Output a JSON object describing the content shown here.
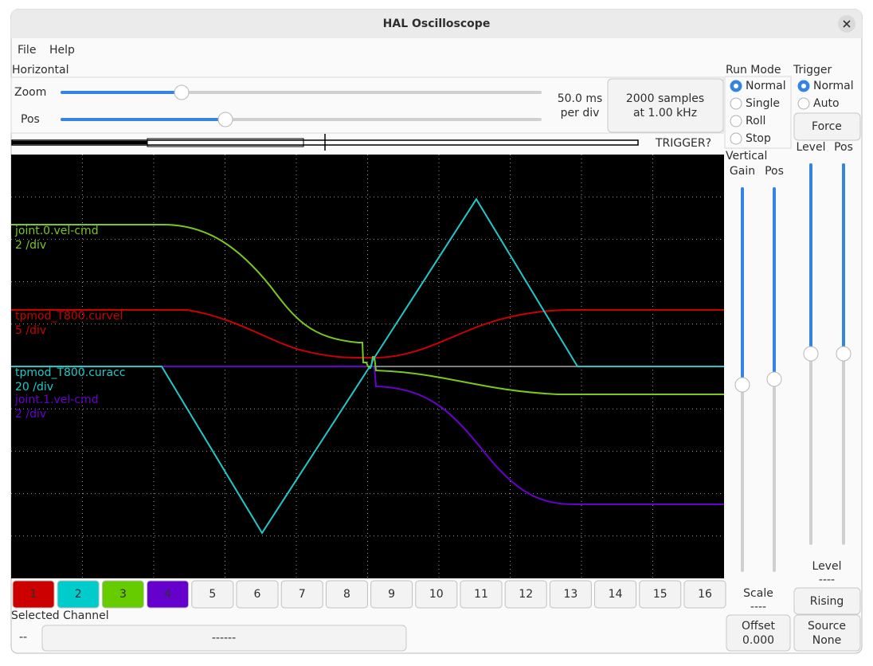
{
  "window": {
    "title": "HAL Oscilloscope"
  },
  "menu": [
    "File",
    "Help"
  ],
  "horizontal": {
    "title": "Horizontal",
    "zoom": "Zoom",
    "pos": "Pos",
    "rate": [
      "50.0 ms",
      "per div"
    ],
    "samples": [
      "2000 samples",
      "at 1.00 kHz"
    ],
    "trigger_status": "TRIGGER?"
  },
  "scope": {
    "traces": [
      {
        "name": "joint.0.vel-cmd",
        "scale": "2 /div",
        "color": "#78c81e"
      },
      {
        "name": "tpmod_T800.curvel",
        "scale": "5 /div",
        "color": "#cc0000"
      },
      {
        "name": "tpmod_T800.curacc",
        "scale": "20 /div",
        "color": "#22c8c8"
      },
      {
        "name": "joint.1.vel-cmd",
        "scale": "2 /div",
        "color": "#6a00cc"
      }
    ]
  },
  "channels": [
    {
      "label": "1",
      "color": "#cc0000"
    },
    {
      "label": "2",
      "color": "#00cccc"
    },
    {
      "label": "3",
      "color": "#66cc00"
    },
    {
      "label": "4",
      "color": "#6600cc"
    },
    {
      "label": "5"
    },
    {
      "label": "6"
    },
    {
      "label": "7"
    },
    {
      "label": "8"
    },
    {
      "label": "9"
    },
    {
      "label": "10"
    },
    {
      "label": "11"
    },
    {
      "label": "12"
    },
    {
      "label": "13"
    },
    {
      "label": "14"
    },
    {
      "label": "15"
    },
    {
      "label": "16"
    }
  ],
  "selected_channel": {
    "title": "Selected Channel",
    "id": "--",
    "name": "------"
  },
  "run_mode": {
    "title": "Run Mode",
    "options": [
      "Normal",
      "Single",
      "Roll",
      "Stop"
    ],
    "selected": 0
  },
  "trigger": {
    "title": "Trigger",
    "options": [
      "Normal",
      "Auto"
    ],
    "selected": 0,
    "force": "Force",
    "level": "Level",
    "pos": "Pos",
    "level_title": "Level",
    "level_value": "----",
    "edge": "Rising",
    "source": [
      "Source",
      "None"
    ]
  },
  "vertical": {
    "title": "Vertical",
    "gain": "Gain",
    "pos": "Pos",
    "scale": "Scale",
    "scale_value": "----",
    "offset": [
      "Offset",
      "0.000"
    ]
  }
}
